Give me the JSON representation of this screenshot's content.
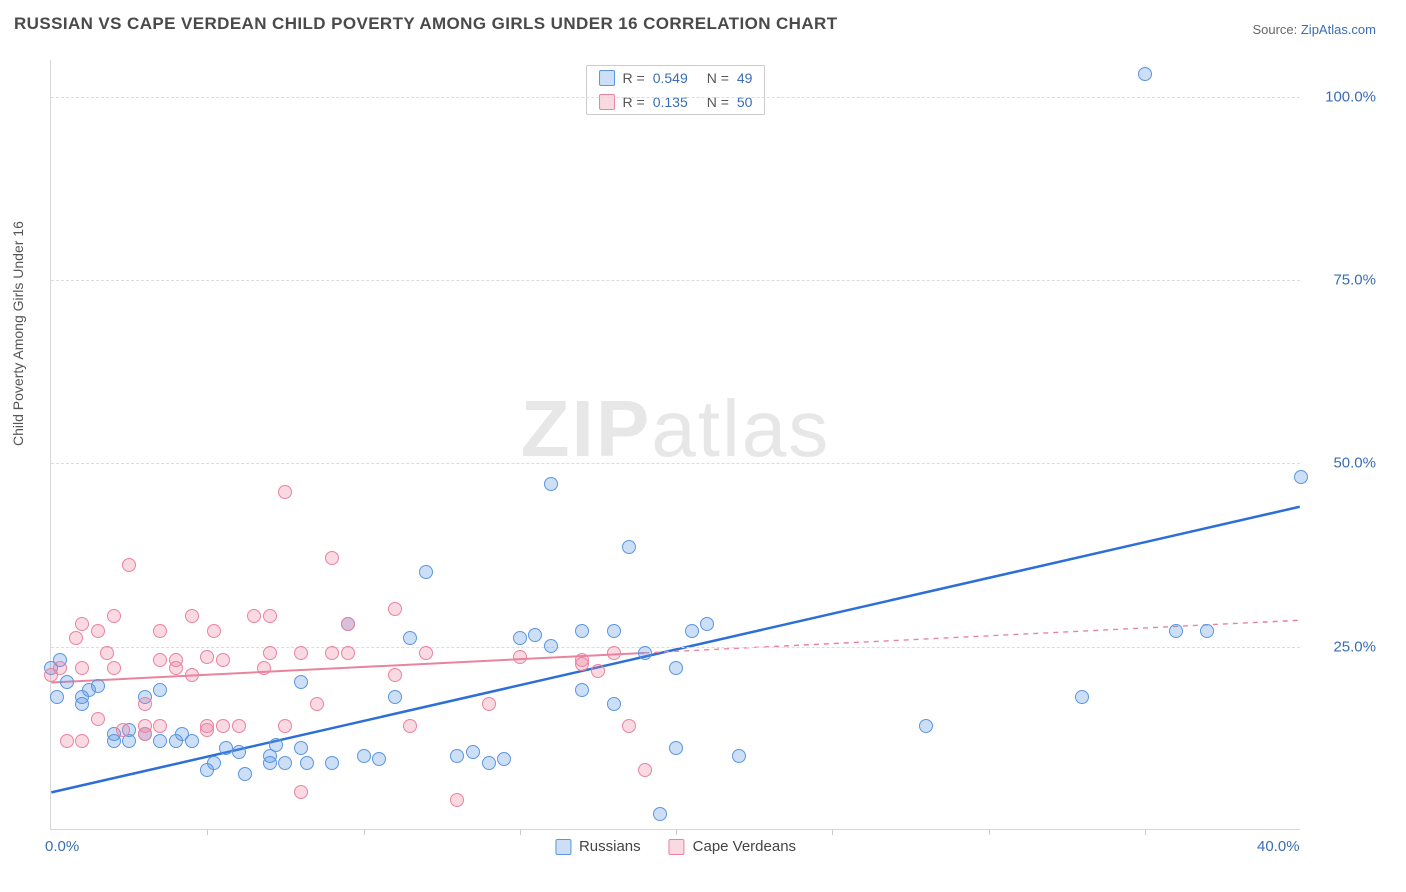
{
  "title": "RUSSIAN VS CAPE VERDEAN CHILD POVERTY AMONG GIRLS UNDER 16 CORRELATION CHART",
  "source_prefix": "Source: ",
  "source_link": "ZipAtlas.com",
  "ylabel": "Child Poverty Among Girls Under 16",
  "watermark_a": "ZIP",
  "watermark_b": "atlas",
  "chart": {
    "xlim": [
      0,
      40
    ],
    "ylim": [
      0,
      105
    ],
    "yticks": [
      {
        "v": 25,
        "label": "25.0%"
      },
      {
        "v": 50,
        "label": "50.0%"
      },
      {
        "v": 75,
        "label": "75.0%"
      },
      {
        "v": 100,
        "label": "100.0%"
      }
    ],
    "xticks_labeled": [
      {
        "v": 0,
        "label": "0.0%"
      },
      {
        "v": 40,
        "label": "40.0%"
      }
    ],
    "xtick_marks": [
      5,
      10,
      15,
      20,
      25,
      30,
      35
    ],
    "grid_color": "#dcdcdc",
    "background": "#ffffff"
  },
  "series": [
    {
      "name": "Russians",
      "fill": "rgba(90,150,225,0.30)",
      "stroke": "#5a96e1",
      "line_color": "#2e6fd6",
      "line_width": 2.5,
      "marker_r": 7,
      "R": "0.549",
      "N": "49",
      "trend": {
        "x1": 0,
        "y1": 5,
        "x2": 40,
        "y2": 44
      },
      "trend_solid_to_x": 40,
      "points": [
        [
          0,
          22
        ],
        [
          0.3,
          23
        ],
        [
          0.2,
          18
        ],
        [
          0.5,
          20
        ],
        [
          1,
          18
        ],
        [
          1,
          17
        ],
        [
          1.5,
          19.5
        ],
        [
          1.2,
          19
        ],
        [
          2,
          12
        ],
        [
          2,
          13
        ],
        [
          2.5,
          12
        ],
        [
          2.5,
          13.5
        ],
        [
          3,
          13
        ],
        [
          3,
          18
        ],
        [
          3.5,
          12
        ],
        [
          3.5,
          19
        ],
        [
          4,
          12
        ],
        [
          4.2,
          13
        ],
        [
          4.5,
          12
        ],
        [
          5,
          8
        ],
        [
          5.2,
          9
        ],
        [
          5.6,
          11
        ],
        [
          6,
          10.5
        ],
        [
          6.2,
          7.5
        ],
        [
          7,
          9
        ],
        [
          7,
          10
        ],
        [
          7.2,
          11.5
        ],
        [
          7.5,
          9
        ],
        [
          8,
          11
        ],
        [
          8,
          20
        ],
        [
          8.2,
          9
        ],
        [
          9,
          9
        ],
        [
          9.5,
          28
        ],
        [
          10,
          10
        ],
        [
          10.5,
          9.5
        ],
        [
          11,
          18
        ],
        [
          11.5,
          26
        ],
        [
          12,
          35
        ],
        [
          13,
          10
        ],
        [
          13.5,
          10.5
        ],
        [
          14,
          9
        ],
        [
          14.5,
          9.5
        ],
        [
          15,
          26
        ],
        [
          15.5,
          26.5
        ],
        [
          16,
          47
        ],
        [
          16,
          25
        ],
        [
          17,
          27
        ],
        [
          17,
          19
        ],
        [
          18,
          27
        ],
        [
          18,
          17
        ],
        [
          18.5,
          38.5
        ],
        [
          19,
          24
        ],
        [
          19.5,
          2
        ],
        [
          20,
          22
        ],
        [
          20,
          11
        ],
        [
          20.5,
          27
        ],
        [
          21,
          28
        ],
        [
          22,
          10
        ],
        [
          28,
          14
        ],
        [
          33,
          18
        ],
        [
          35,
          103
        ],
        [
          36,
          27
        ],
        [
          37,
          27
        ],
        [
          40,
          48
        ]
      ]
    },
    {
      "name": "Cape Verdeans",
      "fill": "rgba(235,130,160,0.30)",
      "stroke": "#eb82a0",
      "line_color": "#e9849f",
      "line_width": 2,
      "marker_r": 7,
      "R": "0.135",
      "N": "50",
      "trend": {
        "x1": 0,
        "y1": 20,
        "x2": 40,
        "y2": 28.5
      },
      "trend_solid_to_x": 19,
      "points": [
        [
          0,
          21
        ],
        [
          0.3,
          22
        ],
        [
          0.5,
          12
        ],
        [
          0.8,
          26
        ],
        [
          1,
          28
        ],
        [
          1,
          22
        ],
        [
          1,
          12
        ],
        [
          1.5,
          27
        ],
        [
          1.5,
          15
        ],
        [
          1.8,
          24
        ],
        [
          2,
          29
        ],
        [
          2,
          22
        ],
        [
          2.3,
          13.5
        ],
        [
          2.5,
          36
        ],
        [
          3,
          17
        ],
        [
          3,
          14
        ],
        [
          3,
          13
        ],
        [
          3.5,
          27
        ],
        [
          3.5,
          23
        ],
        [
          3.5,
          14
        ],
        [
          4,
          23
        ],
        [
          4,
          22
        ],
        [
          4.5,
          21
        ],
        [
          4.5,
          29
        ],
        [
          5,
          23.5
        ],
        [
          5,
          14
        ],
        [
          5,
          13.5
        ],
        [
          5.2,
          27
        ],
        [
          5.5,
          23
        ],
        [
          5.5,
          14
        ],
        [
          6,
          14
        ],
        [
          6.5,
          29
        ],
        [
          6.8,
          22
        ],
        [
          7,
          29
        ],
        [
          7,
          24
        ],
        [
          7.5,
          46
        ],
        [
          7.5,
          14
        ],
        [
          8,
          24
        ],
        [
          8,
          5
        ],
        [
          8.5,
          17
        ],
        [
          9,
          37
        ],
        [
          9,
          24
        ],
        [
          9.5,
          28
        ],
        [
          9.5,
          24
        ],
        [
          11,
          21
        ],
        [
          11,
          30
        ],
        [
          11.5,
          14
        ],
        [
          12,
          24
        ],
        [
          13,
          4
        ],
        [
          14,
          17
        ],
        [
          15,
          23.5
        ],
        [
          17,
          23
        ],
        [
          17,
          22.5
        ],
        [
          17.5,
          21.5
        ],
        [
          18,
          24
        ],
        [
          18.5,
          14
        ],
        [
          19,
          8
        ]
      ]
    }
  ],
  "legend_top_labels": {
    "R": "R =",
    "N": "N ="
  },
  "legend_bottom": [
    "Russians",
    "Cape Verdeans"
  ]
}
